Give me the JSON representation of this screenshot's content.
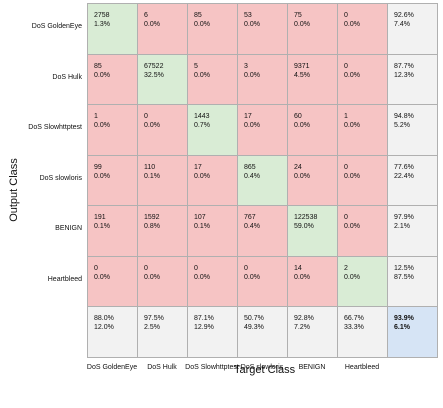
{
  "chart_data": {
    "type": "heatmap",
    "title": "",
    "xlabel": "Target Class",
    "ylabel": "Output Class",
    "rows": [
      "DoS GoldenEye",
      "DoS Hulk",
      "DoS Slowhttptest",
      "DoS slowloris",
      "BENIGN",
      "Heartbleed"
    ],
    "columns": [
      "DoS GoldenEye",
      "DoS Hulk",
      "DoS Slowhttptest",
      "DoS slowloris",
      "BENIGN",
      "Heartbleed"
    ],
    "counts": [
      [
        2758,
        6,
        85,
        53,
        75,
        0
      ],
      [
        85,
        67522,
        5,
        3,
        9371,
        0
      ],
      [
        1,
        0,
        1443,
        17,
        60,
        1
      ],
      [
        99,
        110,
        17,
        865,
        24,
        0
      ],
      [
        191,
        1592,
        107,
        767,
        122538,
        0
      ],
      [
        0,
        0,
        0,
        0,
        14,
        2
      ]
    ],
    "percents": [
      [
        "1.3%",
        "0.0%",
        "0.0%",
        "0.0%",
        "0.0%",
        "0.0%"
      ],
      [
        "0.0%",
        "32.5%",
        "0.0%",
        "0.0%",
        "4.5%",
        "0.0%"
      ],
      [
        "0.0%",
        "0.0%",
        "0.7%",
        "0.0%",
        "0.0%",
        "0.0%"
      ],
      [
        "0.0%",
        "0.1%",
        "0.0%",
        "0.4%",
        "0.0%",
        "0.0%"
      ],
      [
        "0.1%",
        "0.8%",
        "0.1%",
        "0.4%",
        "59.0%",
        "0.0%"
      ],
      [
        "0.0%",
        "0.0%",
        "0.0%",
        "0.0%",
        "0.0%",
        "0.0%"
      ]
    ],
    "row_summary": [
      [
        "92.6%",
        "7.4%"
      ],
      [
        "87.7%",
        "12.3%"
      ],
      [
        "94.8%",
        "5.2%"
      ],
      [
        "77.6%",
        "22.4%"
      ],
      [
        "97.9%",
        "2.1%"
      ],
      [
        "12.5%",
        "87.5%"
      ]
    ],
    "col_summary": [
      [
        "88.0%",
        "12.0%"
      ],
      [
        "97.5%",
        "2.5%"
      ],
      [
        "87.1%",
        "12.9%"
      ],
      [
        "50.7%",
        "49.3%"
      ],
      [
        "92.8%",
        "7.2%"
      ],
      [
        "66.7%",
        "33.3%"
      ]
    ],
    "overall": [
      "93.9%",
      "6.1%"
    ],
    "colors": {
      "diagonal": "#d9ecd5",
      "offdiagonal": "#f6c4c4",
      "summary": "#f2f2f2",
      "overall": "#d6e4f5"
    }
  }
}
